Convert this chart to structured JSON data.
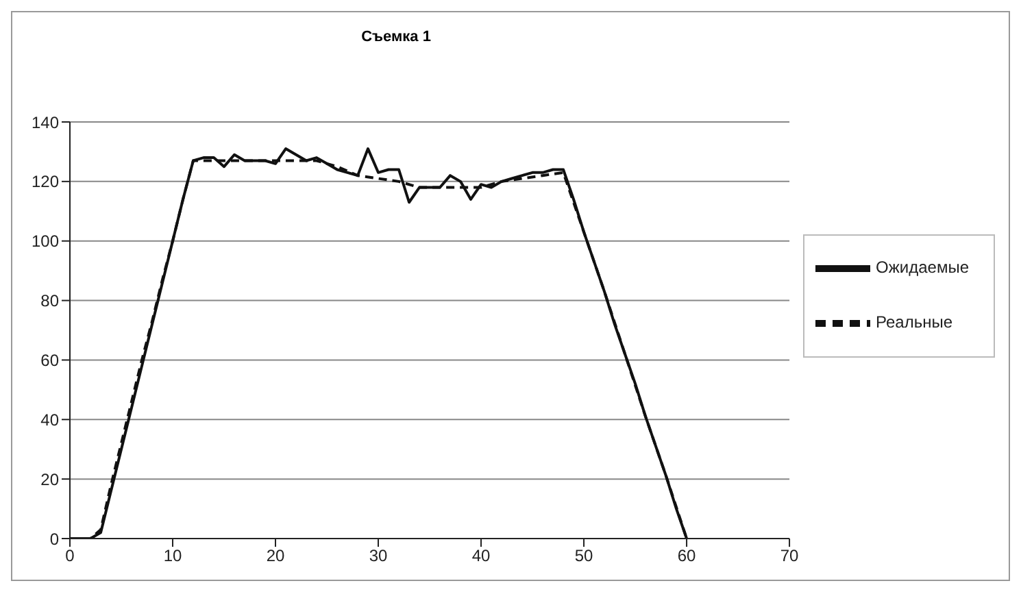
{
  "chart_data": {
    "type": "line",
    "title": "Съемка 1",
    "xlim": [
      0,
      70
    ],
    "xticks": [
      0,
      10,
      20,
      30,
      40,
      50,
      60,
      70
    ],
    "ylim": [
      0,
      140
    ],
    "yticks": [
      0,
      20,
      40,
      60,
      80,
      100,
      120,
      140
    ],
    "grid": "y",
    "legend": "right",
    "marker": "none",
    "series": [
      {
        "name": "Ожидаемые",
        "color": "#111111",
        "line_style": "solid",
        "x": [
          0,
          1,
          2,
          3,
          4,
          5,
          6,
          7,
          8,
          9,
          10,
          11,
          12,
          13,
          14,
          15,
          16,
          17,
          18,
          19,
          20,
          21,
          22,
          23,
          24,
          25,
          26,
          27,
          28,
          29,
          30,
          31,
          32,
          33,
          34,
          35,
          36,
          37,
          38,
          39,
          40,
          41,
          42,
          43,
          44,
          45,
          46,
          47,
          48,
          49,
          50,
          51,
          52,
          53,
          54,
          55,
          56,
          57,
          58,
          59,
          60
        ],
        "values": [
          0,
          0,
          0,
          2,
          16,
          30,
          44,
          58,
          72,
          86,
          100,
          114,
          127,
          128,
          128,
          125,
          129,
          127,
          127,
          127,
          126,
          131,
          129,
          127,
          128,
          126,
          124,
          123,
          122,
          131,
          123,
          124,
          124,
          113,
          118,
          118,
          118,
          122,
          120,
          114,
          119,
          118,
          120,
          121,
          122,
          123,
          123,
          124,
          124,
          114,
          103,
          93,
          83,
          72,
          62,
          52,
          41,
          31,
          21,
          10,
          0
        ]
      },
      {
        "name": "Реальные",
        "color": "#111111",
        "line_style": "dashed",
        "x": [
          0,
          1,
          2,
          3,
          4,
          5,
          6,
          7,
          8,
          9,
          10,
          11,
          12,
          14,
          16,
          18,
          20,
          22,
          24,
          26,
          28,
          30,
          32,
          34,
          36,
          38,
          40,
          42,
          44,
          46,
          48,
          50,
          52,
          54,
          56,
          58,
          60
        ],
        "values": [
          0,
          0,
          0,
          3,
          18,
          32,
          46,
          60,
          73,
          87,
          100,
          114,
          127,
          127,
          127,
          127,
          127,
          127,
          127,
          125,
          122,
          121,
          120,
          118,
          118,
          118,
          118,
          120,
          121,
          122,
          123,
          103,
          83,
          62,
          41,
          21,
          0
        ]
      }
    ]
  }
}
